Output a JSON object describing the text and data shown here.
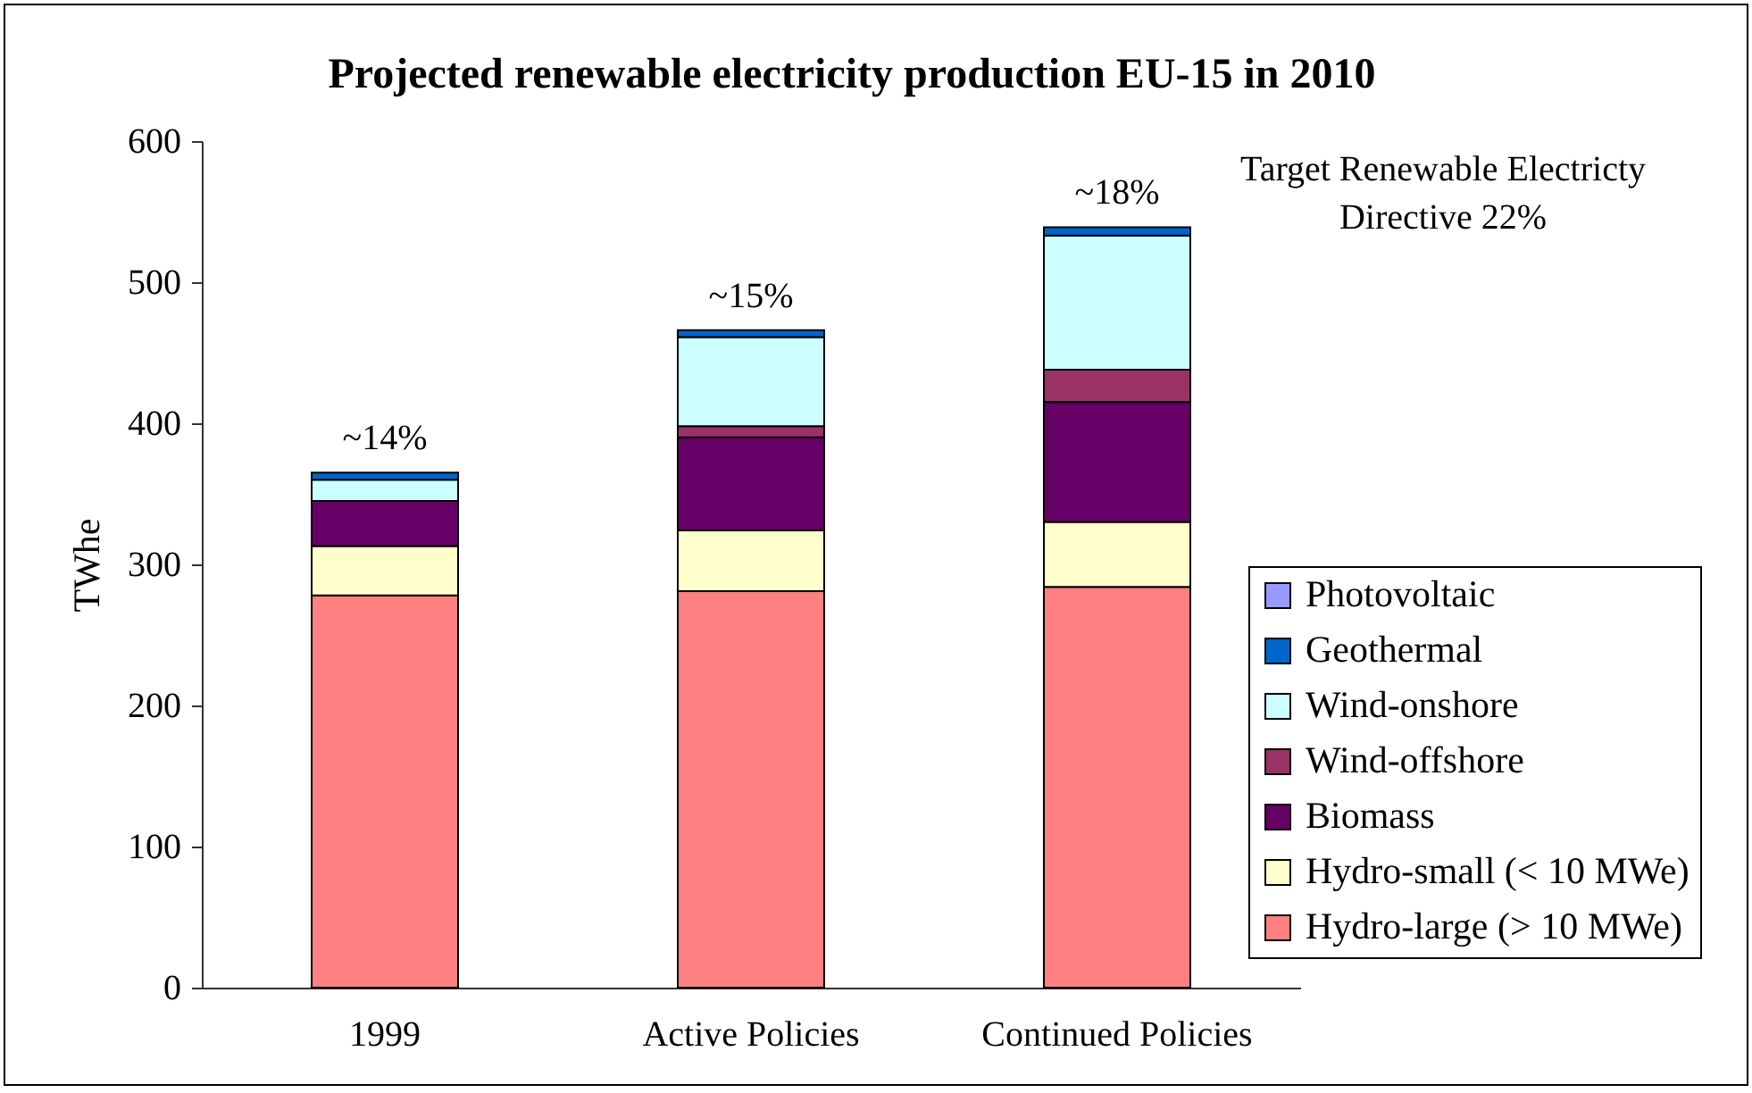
{
  "chart_data": {
    "type": "bar",
    "title": "Projected renewable electricity production EU-15 in 2010",
    "ylabel": "TWhe",
    "categories": [
      "1999",
      "Active Policies",
      "Continued Policies"
    ],
    "stacked": true,
    "series": [
      {
        "name": "Hydro-large (> 10 MWe)",
        "color": "#ff8080",
        "values": [
          278,
          281,
          284
        ]
      },
      {
        "name": "Hydro-small (< 10 MWe)",
        "color": "#ffffcc",
        "values": [
          35,
          43,
          46
        ]
      },
      {
        "name": "Biomass",
        "color": "#660066",
        "values": [
          32,
          66,
          85
        ]
      },
      {
        "name": "Wind-offshore",
        "color": "#993366",
        "values": [
          null,
          8,
          23
        ]
      },
      {
        "name": "Wind-onshore",
        "color": "#ccffff",
        "values": [
          15,
          63,
          95
        ]
      },
      {
        "name": "Geothermal",
        "color": "#0066cc",
        "values": [
          5,
          5,
          6
        ]
      },
      {
        "name": "Photovoltaic",
        "color": "#9999ff",
        "values": [
          null,
          null,
          null
        ]
      }
    ],
    "ylim": [
      0,
      600
    ],
    "yticks": [
      0,
      100,
      200,
      300,
      400,
      500,
      600
    ],
    "grid": false,
    "legend": "bottom right",
    "annotations": [
      {
        "text": "~14%",
        "x": "1999",
        "y": 365
      },
      {
        "text": "~15%",
        "x": "Active Policies",
        "y": 466
      },
      {
        "text": "~18%",
        "x": "Continued Policies",
        "y": 539
      },
      "Target Renewable Electricty\nDirective 22%"
    ]
  }
}
